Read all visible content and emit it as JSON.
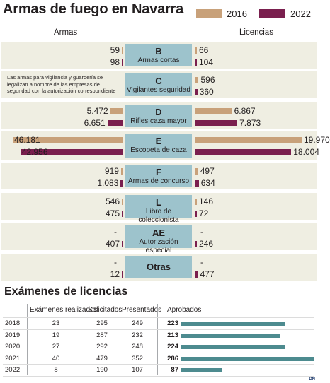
{
  "title": "Armas de fuego en Navarra",
  "legend": [
    {
      "label": "2016",
      "color": "#c8a17a"
    },
    {
      "label": "2022",
      "color": "#7a1f4e"
    }
  ],
  "columns": {
    "left": "Armas",
    "right": "Licencias"
  },
  "note": "Las armas para vigilancia y guardería se legalizan a nombre de las empresas de seguridad con la autorización correspondiente",
  "chart_data": [
    {
      "type": "bar",
      "title": "Armas de fuego en Navarra",
      "series_names": [
        "2016",
        "2022"
      ],
      "categories": [
        {
          "code": "B",
          "name": "Armas cortas",
          "armas": {
            "2016": "59",
            "2022": "98"
          },
          "licencias": {
            "2016": "66",
            "2022": "104"
          }
        },
        {
          "code": "C",
          "name": "Vigilantes seguridad",
          "armas": {
            "2016": "",
            "2022": ""
          },
          "licencias": {
            "2016": "596",
            "2022": "360"
          }
        },
        {
          "code": "D",
          "name": "Rifles caza mayor",
          "armas": {
            "2016": "5.472",
            "2022": "6.651"
          },
          "licencias": {
            "2016": "6.867",
            "2022": "7.873"
          }
        },
        {
          "code": "E",
          "name": "Escopeta de caza",
          "armas": {
            "2016": "46.181",
            "2022": "42.956"
          },
          "licencias": {
            "2016": "19.970",
            "2022": "18.004"
          }
        },
        {
          "code": "F",
          "name": "Armas de concurso",
          "armas": {
            "2016": "919",
            "2022": "1.083"
          },
          "licencias": {
            "2016": "497",
            "2022": "634"
          }
        },
        {
          "code": "L",
          "name": "Libro de coleccionista",
          "armas": {
            "2016": "546",
            "2022": "475"
          },
          "licencias": {
            "2016": "146",
            "2022": "72"
          }
        },
        {
          "code": "AE",
          "name": "Autorización especial",
          "armas": {
            "2016": "-",
            "2022": "407"
          },
          "licencias": {
            "2016": "-",
            "2022": "246"
          }
        },
        {
          "code": "Otras",
          "name": "",
          "armas": {
            "2016": "-",
            "2022": "12"
          },
          "licencias": {
            "2016": "-",
            "2022": "477"
          }
        }
      ]
    },
    {
      "type": "table",
      "title": "Exámenes de licencias",
      "headers": [
        "Exámenes realizados",
        "Solicitados",
        "Presentados",
        "Aprobados"
      ],
      "rows": [
        {
          "year": "2018",
          "realizados": "23",
          "solicitados": "295",
          "presentados": "249",
          "aprobados": "223"
        },
        {
          "year": "2019",
          "realizados": "19",
          "solicitados": "287",
          "presentados": "232",
          "aprobados": "213"
        },
        {
          "year": "2020",
          "realizados": "27",
          "solicitados": "292",
          "presentados": "248",
          "aprobados": "224"
        },
        {
          "year": "2021",
          "realizados": "40",
          "solicitados": "479",
          "presentados": "352",
          "aprobados": "286"
        },
        {
          "year": "2022",
          "realizados": "8",
          "solicitados": "190",
          "presentados": "107",
          "aprobados": "87"
        }
      ]
    }
  ],
  "logo": "DN"
}
